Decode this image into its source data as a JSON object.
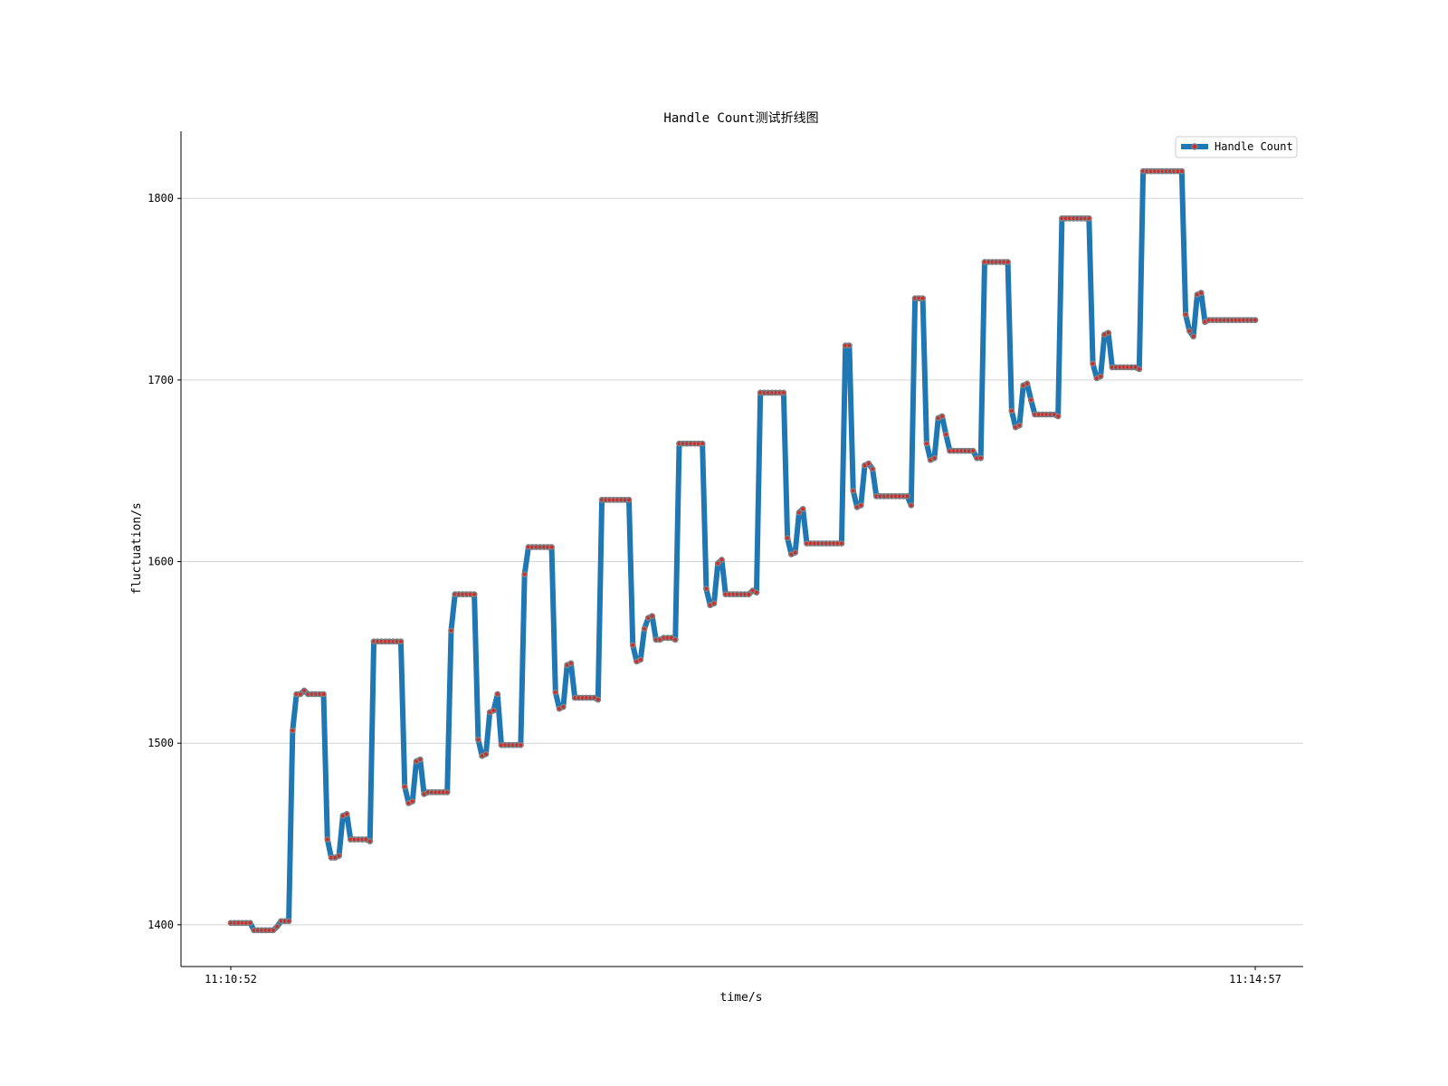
{
  "chart_data": {
    "type": "line",
    "title": "Handle Count测试折线图",
    "xlabel": "time/s",
    "ylabel": "fluctuation/s",
    "x_tick_labels": [
      "11:10:52",
      "11:14:57"
    ],
    "y_ticks": [
      1400,
      1500,
      1600,
      1700,
      1800
    ],
    "ylim": [
      1377,
      1837
    ],
    "grid": "horizontal",
    "legend_position": "top-right",
    "colors": {
      "line": "#1f77b4",
      "marker_edge": "#808080",
      "marker_face": "#d62728",
      "grid": "#d3d3d3"
    },
    "series": [
      {
        "name": "Handle Count",
        "values": [
          1401,
          1401,
          1401,
          1401,
          1401,
          1401,
          1397,
          1397,
          1397,
          1397,
          1397,
          1397,
          1399,
          1402,
          1402,
          1402,
          1507,
          1527,
          1527,
          1529,
          1527,
          1527,
          1527,
          1527,
          1527,
          1447,
          1437,
          1437,
          1438,
          1460,
          1461,
          1447,
          1447,
          1447,
          1447,
          1447,
          1446,
          1556,
          1556,
          1556,
          1556,
          1556,
          1556,
          1556,
          1556,
          1476,
          1467,
          1468,
          1490,
          1491,
          1472,
          1473,
          1473,
          1473,
          1473,
          1473,
          1473,
          1562,
          1582,
          1582,
          1582,
          1582,
          1582,
          1582,
          1502,
          1493,
          1494,
          1517,
          1518,
          1527,
          1499,
          1499,
          1499,
          1499,
          1499,
          1499,
          1593,
          1608,
          1608,
          1608,
          1608,
          1608,
          1608,
          1608,
          1528,
          1519,
          1520,
          1543,
          1544,
          1525,
          1525,
          1525,
          1525,
          1525,
          1525,
          1524,
          1634,
          1634,
          1634,
          1634,
          1634,
          1634,
          1634,
          1634,
          1554,
          1545,
          1546,
          1563,
          1569,
          1570,
          1557,
          1557,
          1558,
          1558,
          1558,
          1557,
          1665,
          1665,
          1665,
          1665,
          1665,
          1665,
          1665,
          1585,
          1576,
          1577,
          1599,
          1601,
          1582,
          1582,
          1582,
          1582,
          1582,
          1582,
          1582,
          1584,
          1583,
          1693,
          1693,
          1693,
          1693,
          1693,
          1693,
          1693,
          1613,
          1604,
          1605,
          1627,
          1629,
          1610,
          1610,
          1610,
          1610,
          1610,
          1610,
          1610,
          1610,
          1610,
          1610,
          1719,
          1719,
          1639,
          1630,
          1631,
          1653,
          1654,
          1651,
          1636,
          1636,
          1636,
          1636,
          1636,
          1636,
          1636,
          1636,
          1636,
          1631,
          1745,
          1745,
          1745,
          1665,
          1656,
          1657,
          1679,
          1680,
          1670,
          1661,
          1661,
          1661,
          1661,
          1661,
          1661,
          1661,
          1657,
          1657,
          1765,
          1765,
          1765,
          1765,
          1765,
          1765,
          1765,
          1683,
          1674,
          1675,
          1697,
          1698,
          1689,
          1681,
          1681,
          1681,
          1681,
          1681,
          1681,
          1680,
          1789,
          1789,
          1789,
          1789,
          1789,
          1789,
          1789,
          1789,
          1709,
          1701,
          1702,
          1725,
          1726,
          1707,
          1707,
          1707,
          1707,
          1707,
          1707,
          1707,
          1706,
          1815,
          1815,
          1815,
          1815,
          1815,
          1815,
          1815,
          1815,
          1815,
          1815,
          1815,
          1736,
          1727,
          1724,
          1747,
          1748,
          1732,
          1733,
          1733,
          1733,
          1733,
          1733,
          1733,
          1733,
          1733,
          1733,
          1733,
          1733,
          1733,
          1733
        ]
      }
    ]
  }
}
